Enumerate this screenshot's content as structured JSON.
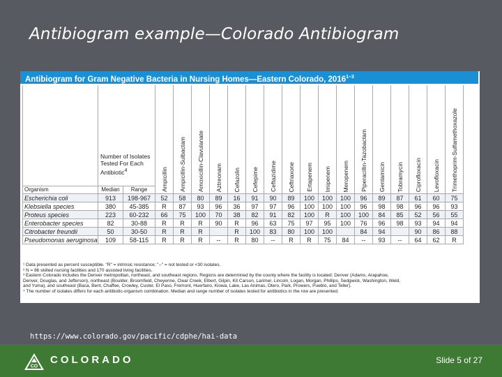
{
  "slide": {
    "title": "Antibiogram example—Colorado Antibiogram",
    "source_url": "https://www.colorado.gov/pacific/cdphe/hai-data",
    "brand": "COLORADO",
    "slide_number": "Slide 5 of 27",
    "logo_icon": "colorado-co-mountain-icon",
    "colors": {
      "background": "#575b61",
      "banner": "#1b8fd3",
      "footer": "#3e7a34"
    }
  },
  "antibiogram": {
    "banner_title": "Antibiogram for Gram Negative Bacteria in Nursing Homes—Eastern Colorado, 2016",
    "banner_sup": "1–3",
    "isolates_header": "Number of Isolates Tested For Each Antibiotic",
    "isolates_sup": "4",
    "organism_label": "Organism",
    "median_label": "Median",
    "range_label": "Range",
    "antibiotics": [
      "Ampicillin",
      "Ampicillin-Sulbactam",
      "Amoxicillin-Clavulanate",
      "Aztreonam",
      "Cefazolin",
      "Cefepime",
      "Ceftazidime",
      "Ceftriaxone",
      "Ertapenem",
      "Imipenem",
      "Meropenem",
      "Piperacillin-Tazobactam",
      "Gentamicin",
      "Tobramycin",
      "Ciprofloxacin",
      "Levofloxacin",
      "Trimethoprim-Sulfamethoxazole"
    ],
    "rows": [
      {
        "organism": "Escherichia coli",
        "median": "913",
        "range": "198-967",
        "values": [
          "52",
          "58",
          "80",
          "89",
          "16",
          "91",
          "90",
          "89",
          "100",
          "100",
          "100",
          "96",
          "89",
          "87",
          "61",
          "60",
          "75"
        ]
      },
      {
        "organism": "Klebsiella species",
        "median": "380",
        "range": "45-385",
        "values": [
          "R",
          "87",
          "93",
          "96",
          "36",
          "97",
          "97",
          "96",
          "100",
          "100",
          "100",
          "96",
          "98",
          "98",
          "96",
          "96",
          "93"
        ]
      },
      {
        "organism": "Proteus species",
        "median": "223",
        "range": "60-232",
        "values": [
          "66",
          "75",
          "100",
          "70",
          "38",
          "82",
          "91",
          "82",
          "100",
          "R",
          "100",
          "100",
          "84",
          "85",
          "52",
          "56",
          "55"
        ]
      },
      {
        "organism": "Enterobacter species",
        "median": "82",
        "range": "30-88",
        "values": [
          "R",
          "R",
          "R",
          "90",
          "R",
          "96",
          "63",
          "75",
          "97",
          "95",
          "100",
          "76",
          "96",
          "98",
          "93",
          "94",
          "94"
        ]
      },
      {
        "organism": "Citrobacter freundii",
        "median": "50",
        "range": "30-50",
        "values": [
          "R",
          "R",
          "R",
          "",
          "R",
          "100",
          "83",
          "80",
          "100",
          "100",
          "",
          "84",
          "94",
          "",
          "90",
          "86",
          "88"
        ]
      },
      {
        "organism": "Pseudomonas aeruginosa",
        "median": "109",
        "range": "58-115",
        "values": [
          "R",
          "R",
          "R",
          "--",
          "R",
          "80",
          "--",
          "R",
          "R",
          "75",
          "84",
          "--",
          "93",
          "--",
          "64",
          "62",
          "R"
        ]
      }
    ],
    "notes": [
      "¹ Data presented as percent susceptible. \"R\" = intrinsic resistance; \"--\" = not tested or <30 isolates.",
      "² N = 86 skilled nursing facilities and 170 assisted living facilities.",
      "³ Eastern Colorado includes the Denver metropolitan, northeast, and southeast regions. Regions are determined by the county where the facility is located: Denver (Adams, Arapahoe,",
      "Denver, Douglas, and Jefferson), northeast (Boulder, Broomfield, Cheyenne, Clear Creek, Elbert, Gilpin, Kit Carson, Larimer, Lincoln, Logan, Morgan, Phillips, Sedgwick, Washington, Weld,",
      "and Yuma), and southeast (Baca, Bent, Chaffee, Crowley, Custer, El Paso, Fremont, Huerfano, Kiowa, Lake, Las Animas, Otero, Park, Prowers, Pueblo, and Teller).",
      "⁴ The number of isolates differs for each antibiotic-organism combination. Median and range number of isolates tested for antibiotics in the row are presented."
    ]
  }
}
